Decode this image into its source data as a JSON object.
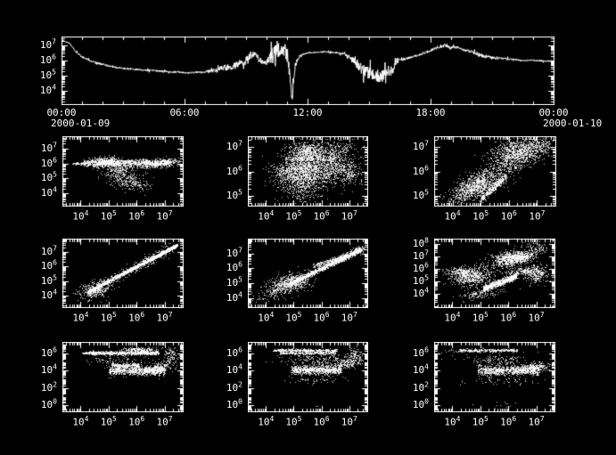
{
  "figure": {
    "background": "#000000",
    "foreground": "#ffffff"
  },
  "time_axis": {
    "tick_labels": [
      "00:00",
      "06:00",
      "12:00",
      "18:00",
      "00:00"
    ],
    "date_start": "2000-01-09",
    "date_end": "2000-01-10"
  },
  "cluster_format": "each cluster = [center_x_log10, center_y_log10, spread_x, spread_y, slope, n_points, uniform_x_flag]",
  "chart_data": [
    {
      "id": "flux-timeseries",
      "type": "line",
      "x_scale": "time-hours",
      "y_scale": "log10",
      "xlim_hours": [
        0,
        24
      ],
      "x_major_hours": [
        0,
        6,
        12,
        18,
        24
      ],
      "x_minor_step_hours": 1,
      "x_tick_labels": [
        "00:00",
        "06:00",
        "12:00",
        "18:00",
        "00:00"
      ],
      "date_start": "2000-01-09",
      "date_end": "2000-01-10",
      "ylim_log": [
        3.15,
        7.6
      ],
      "y_tick_exponents": [
        4,
        5,
        6,
        7
      ],
      "keypoints_t_logv_jitter": [
        [
          0,
          7.35,
          0.03
        ],
        [
          0.4,
          7.15,
          0.04
        ],
        [
          0.7,
          6.6,
          0.06
        ],
        [
          1.0,
          6.25,
          0.06
        ],
        [
          1.5,
          5.95,
          0.06
        ],
        [
          2.2,
          5.7,
          0.06
        ],
        [
          3,
          5.5,
          0.06
        ],
        [
          4,
          5.4,
          0.06
        ],
        [
          5,
          5.3,
          0.06
        ],
        [
          6,
          5.22,
          0.05
        ],
        [
          6.8,
          5.25,
          0.07
        ],
        [
          7.4,
          5.35,
          0.12
        ],
        [
          7.9,
          5.55,
          0.2
        ],
        [
          8.4,
          5.65,
          0.25
        ],
        [
          8.8,
          5.9,
          0.28
        ],
        [
          9.1,
          6.1,
          0.3
        ],
        [
          9.35,
          6.6,
          0.3
        ],
        [
          9.55,
          6.25,
          0.3
        ],
        [
          9.75,
          6.0,
          0.2
        ],
        [
          10.0,
          5.85,
          0.15
        ],
        [
          10.25,
          6.3,
          0.55
        ],
        [
          10.5,
          6.7,
          0.65
        ],
        [
          10.7,
          6.5,
          0.7
        ],
        [
          10.9,
          6.8,
          0.6
        ],
        [
          11.05,
          6.3,
          0.5
        ],
        [
          11.15,
          4.6,
          0.4
        ],
        [
          11.25,
          3.6,
          0.3
        ],
        [
          11.4,
          5.7,
          0.2
        ],
        [
          11.6,
          6.3,
          0.08
        ],
        [
          11.9,
          6.5,
          0.05
        ],
        [
          12.3,
          6.55,
          0.04
        ],
        [
          12.8,
          6.6,
          0.04
        ],
        [
          13.3,
          6.55,
          0.05
        ],
        [
          13.8,
          6.45,
          0.07
        ],
        [
          14.1,
          6.2,
          0.15
        ],
        [
          14.4,
          5.8,
          0.3
        ],
        [
          14.8,
          5.3,
          0.4
        ],
        [
          15.2,
          5.1,
          0.42
        ],
        [
          15.6,
          5.0,
          0.42
        ],
        [
          15.9,
          5.15,
          0.38
        ],
        [
          16.2,
          5.5,
          0.3
        ],
        [
          16.45,
          6.0,
          0.12
        ],
        [
          16.7,
          6.1,
          0.07
        ],
        [
          17.2,
          6.3,
          0.07
        ],
        [
          17.7,
          6.5,
          0.07
        ],
        [
          18.2,
          6.8,
          0.08
        ],
        [
          18.5,
          6.9,
          0.09
        ],
        [
          18.7,
          7.0,
          0.08
        ],
        [
          19.0,
          6.85,
          0.09
        ],
        [
          19.3,
          6.9,
          0.08
        ],
        [
          19.6,
          6.7,
          0.09
        ],
        [
          20.0,
          6.6,
          0.1
        ],
        [
          20.5,
          6.35,
          0.12
        ],
        [
          21.0,
          6.2,
          0.1
        ],
        [
          21.5,
          6.15,
          0.08
        ],
        [
          22.0,
          6.1,
          0.06
        ],
        [
          22.5,
          6.0,
          0.05
        ],
        [
          23.0,
          6.05,
          0.05
        ],
        [
          23.5,
          5.98,
          0.05
        ],
        [
          24,
          6.0,
          0.04
        ]
      ]
    },
    {
      "id": "scatter-r1c1",
      "type": "scatter",
      "x_scale": "log10",
      "y_scale": "log10",
      "xlim_log": [
        3.35,
        7.65
      ],
      "ylim_log": [
        3.2,
        7.8
      ],
      "x_tick_exponents": [
        4,
        5,
        6,
        7
      ],
      "y_tick_exponents": [
        4,
        5,
        6,
        7
      ],
      "clusters": [
        [
          5.65,
          6.05,
          1.55,
          0.12,
          0,
          900,
          1
        ],
        [
          4.9,
          6.1,
          0.3,
          0.17,
          0,
          500,
          0
        ],
        [
          6.55,
          6.0,
          0.4,
          0.13,
          0.1,
          350,
          0
        ],
        [
          3.95,
          6.0,
          0.25,
          0.04,
          0,
          60,
          1
        ],
        [
          5.35,
          5.55,
          0.25,
          0.2,
          0.5,
          150,
          0
        ],
        [
          5.6,
          5.0,
          0.3,
          0.3,
          0,
          200,
          0
        ],
        [
          6.0,
          4.6,
          0.25,
          0.2,
          0,
          80,
          0
        ],
        [
          7.2,
          6.1,
          0.2,
          0.1,
          0.2,
          80,
          0
        ]
      ]
    },
    {
      "id": "scatter-r1c2",
      "type": "scatter",
      "x_scale": "log10",
      "y_scale": "log10",
      "xlim_log": [
        3.35,
        7.65
      ],
      "ylim_log": [
        4.6,
        7.45
      ],
      "x_tick_exponents": [
        4,
        5,
        6,
        7
      ],
      "y_tick_exponents": [
        5,
        6,
        7
      ],
      "clusters": [
        [
          5.35,
          6.0,
          0.45,
          0.4,
          0.2,
          1500,
          0
        ],
        [
          5.5,
          6.85,
          0.35,
          0.22,
          0,
          500,
          0
        ],
        [
          5.6,
          6.55,
          0.9,
          0.06,
          0,
          250,
          1
        ],
        [
          6.35,
          6.2,
          0.35,
          0.35,
          0.3,
          500,
          0
        ],
        [
          7.0,
          5.95,
          0.2,
          0.25,
          0,
          200,
          0
        ],
        [
          6.6,
          6.9,
          0.35,
          0.25,
          0,
          150,
          0
        ],
        [
          4.65,
          6.05,
          0.3,
          0.15,
          0,
          120,
          0
        ],
        [
          5.35,
          5.1,
          0.3,
          0.2,
          0,
          100,
          0
        ]
      ]
    },
    {
      "id": "scatter-r1c3",
      "type": "scatter",
      "x_scale": "log10",
      "y_scale": "log10",
      "xlim_log": [
        3.35,
        7.65
      ],
      "ylim_log": [
        4.6,
        7.45
      ],
      "x_tick_exponents": [
        4,
        5,
        6,
        7
      ],
      "y_tick_exponents": [
        5,
        6,
        7
      ],
      "clusters": [
        [
          5.0,
          5.5,
          0.5,
          0.28,
          0.6,
          600,
          0
        ],
        [
          6.2,
          6.6,
          0.5,
          0.3,
          0.5,
          700,
          0
        ],
        [
          4.75,
          5.45,
          0.3,
          0.22,
          0.3,
          400,
          0
        ],
        [
          5.45,
          5.35,
          0.45,
          0.09,
          1.0,
          400,
          1
        ],
        [
          6.3,
          6.9,
          0.45,
          0.25,
          0.2,
          500,
          0
        ],
        [
          7.1,
          7.0,
          0.25,
          0.2,
          0.3,
          150,
          0
        ],
        [
          4.2,
          5.0,
          0.2,
          0.2,
          0.4,
          80,
          0
        ]
      ]
    },
    {
      "id": "scatter-r2c1",
      "type": "scatter",
      "x_scale": "log10",
      "y_scale": "log10",
      "xlim_log": [
        3.35,
        7.65
      ],
      "ylim_log": [
        3.2,
        7.9
      ],
      "x_tick_exponents": [
        4,
        5,
        6,
        7
      ],
      "y_tick_exponents": [
        4,
        5,
        6,
        7
      ],
      "clusters": [
        [
          5.85,
          5.85,
          1.6,
          0.06,
          1,
          1500,
          1
        ],
        [
          5.8,
          5.8,
          1.5,
          0.2,
          1,
          400,
          1
        ],
        [
          4.5,
          4.4,
          0.3,
          0.28,
          0.3,
          350,
          0
        ],
        [
          6.9,
          6.9,
          0.5,
          0.06,
          1,
          300,
          1
        ]
      ]
    },
    {
      "id": "scatter-r2c2",
      "type": "scatter",
      "x_scale": "log10",
      "y_scale": "log10",
      "xlim_log": [
        3.35,
        7.65
      ],
      "ylim_log": [
        3.4,
        8.0
      ],
      "x_tick_exponents": [
        4,
        5,
        6,
        7
      ],
      "y_tick_exponents": [
        4,
        5,
        6,
        7
      ],
      "clusters": [
        [
          6.1,
          6.1,
          1.3,
          0.09,
          0.9,
          1300,
          1
        ],
        [
          4.85,
          5.0,
          0.35,
          0.3,
          0.3,
          600,
          0
        ],
        [
          6.3,
          6.55,
          0.6,
          0.07,
          0.6,
          220,
          1
        ],
        [
          4.2,
          4.4,
          0.3,
          0.25,
          0.5,
          120,
          0
        ],
        [
          7.3,
          7.2,
          0.15,
          0.12,
          0.5,
          150,
          0
        ]
      ]
    },
    {
      "id": "scatter-r2c3",
      "type": "scatter",
      "x_scale": "log10",
      "y_scale": "log10",
      "xlim_log": [
        3.35,
        7.65
      ],
      "ylim_log": [
        2.9,
        8.4
      ],
      "x_tick_exponents": [
        4,
        5,
        6,
        7
      ],
      "y_tick_exponents": [
        4,
        5,
        6,
        7,
        8
      ],
      "clusters": [
        [
          4.7,
          5.4,
          0.35,
          0.4,
          0.2,
          600,
          0
        ],
        [
          4.3,
          5.8,
          0.3,
          0.15,
          0,
          200,
          0
        ],
        [
          5.7,
          4.9,
          0.6,
          0.13,
          0.85,
          900,
          1
        ],
        [
          6.05,
          6.8,
          0.35,
          0.3,
          0.3,
          700,
          0
        ],
        [
          6.55,
          7.0,
          0.25,
          0.2,
          0.5,
          250,
          0
        ],
        [
          7.0,
          5.6,
          0.2,
          0.35,
          0,
          250,
          0
        ],
        [
          7.0,
          7.7,
          0.25,
          0.3,
          0,
          80,
          0
        ],
        [
          5.0,
          4.0,
          0.4,
          0.2,
          0.3,
          150,
          0
        ],
        [
          6.5,
          5.8,
          0.3,
          0.2,
          0.3,
          200,
          0
        ]
      ]
    },
    {
      "id": "scatter-r3c1",
      "type": "scatter",
      "x_scale": "log10",
      "y_scale": "log10",
      "xlim_log": [
        3.35,
        7.65
      ],
      "ylim_log": [
        -0.7,
        7.3
      ],
      "x_tick_exponents": [
        4,
        5,
        6,
        7
      ],
      "y_tick_exponents": [
        0,
        2,
        4,
        6
      ],
      "clusters": [
        [
          5.55,
          6.05,
          1.25,
          0.1,
          0,
          700,
          1
        ],
        [
          6.1,
          6.4,
          0.3,
          0.15,
          0,
          250,
          0
        ],
        [
          6.0,
          4.0,
          1.0,
          0.25,
          0,
          900,
          1
        ],
        [
          5.6,
          4.6,
          0.5,
          0.12,
          0,
          250,
          1
        ],
        [
          6.8,
          4.4,
          0.25,
          0.3,
          0.5,
          200,
          0
        ],
        [
          5.3,
          5.2,
          0.5,
          0.4,
          0,
          120,
          0
        ],
        [
          7.2,
          5.8,
          0.12,
          0.5,
          0,
          100,
          0
        ],
        [
          4.3,
          6.05,
          0.25,
          0.06,
          0,
          80,
          1
        ]
      ]
    },
    {
      "id": "scatter-r3c2",
      "type": "scatter",
      "x_scale": "log10",
      "y_scale": "log10",
      "xlim_log": [
        3.35,
        7.65
      ],
      "ylim_log": [
        -0.7,
        7.3
      ],
      "x_tick_exponents": [
        4,
        5,
        6,
        7
      ],
      "y_tick_exponents": [
        0,
        2,
        4,
        6
      ],
      "clusters": [
        [
          5.4,
          6.35,
          1.15,
          0.08,
          0,
          450,
          1
        ],
        [
          5.5,
          6.05,
          1.0,
          0.08,
          0,
          300,
          1
        ],
        [
          5.8,
          4.1,
          0.9,
          0.25,
          0,
          900,
          1
        ],
        [
          6.9,
          4.9,
          0.3,
          0.35,
          0.6,
          250,
          0
        ],
        [
          5.9,
          5.3,
          0.6,
          0.4,
          0,
          200,
          0
        ],
        [
          5.8,
          2.9,
          0.6,
          0.2,
          0,
          50,
          0
        ],
        [
          5.85,
          -0.1,
          0.05,
          0.05,
          0,
          2,
          0
        ],
        [
          7.2,
          5.9,
          0.12,
          0.4,
          0,
          80,
          0
        ]
      ]
    },
    {
      "id": "scatter-r3c3",
      "type": "scatter",
      "x_scale": "log10",
      "y_scale": "log10",
      "xlim_log": [
        3.35,
        7.65
      ],
      "ylim_log": [
        -0.7,
        7.3
      ],
      "x_tick_exponents": [
        4,
        5,
        6,
        7
      ],
      "y_tick_exponents": [
        0,
        2,
        4,
        6
      ],
      "clusters": [
        [
          5.3,
          6.35,
          1.05,
          0.09,
          0,
          350,
          1
        ],
        [
          6.0,
          4.05,
          1.1,
          0.25,
          0,
          900,
          1
        ],
        [
          6.9,
          4.4,
          0.3,
          0.3,
          0.4,
          250,
          0
        ],
        [
          5.6,
          5.2,
          0.6,
          0.4,
          0,
          150,
          0
        ],
        [
          5.8,
          2.9,
          0.7,
          0.25,
          0,
          60,
          0
        ],
        [
          5.6,
          0.0,
          0.9,
          0.3,
          0,
          14,
          1
        ],
        [
          4.5,
          6.3,
          0.3,
          0.1,
          0,
          60,
          0
        ]
      ]
    }
  ]
}
